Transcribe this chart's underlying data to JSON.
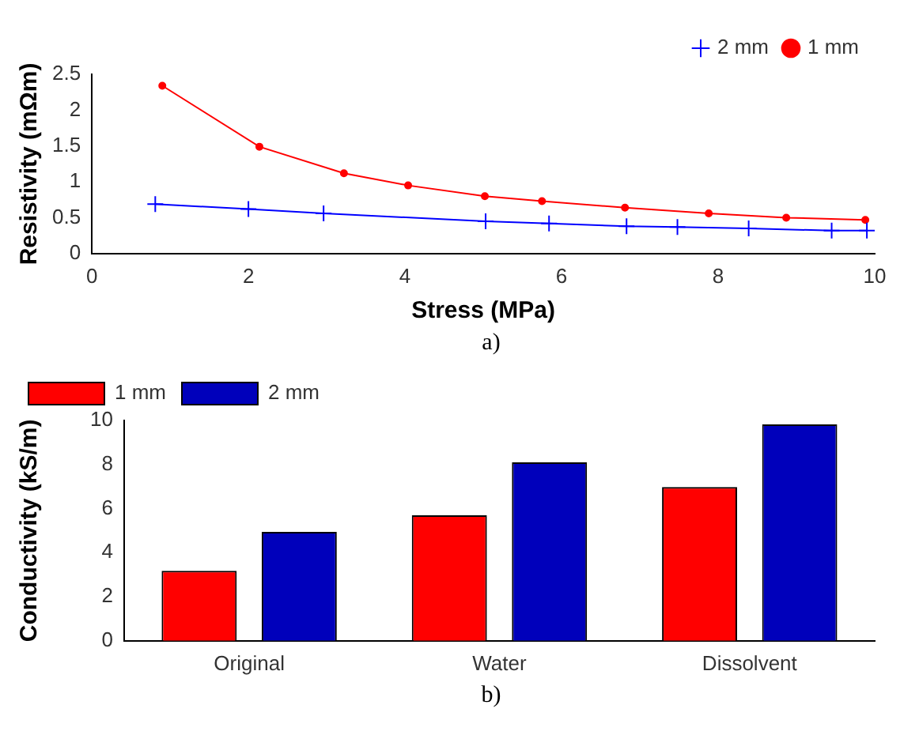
{
  "chart_data": [
    {
      "type": "line",
      "xlabel": "Stress (MPa)",
      "ylabel": "Resistivity (mΩm)",
      "xlim": [
        0,
        10
      ],
      "xticks": [
        0,
        2,
        4,
        6,
        8,
        10
      ],
      "ylim": [
        0,
        2.5
      ],
      "yticks": [
        0,
        0.5,
        1,
        1.5,
        2,
        2.5
      ],
      "grid": false,
      "legend": "top right",
      "annotations": [
        "a)"
      ],
      "series": [
        {
          "name": "2 mm",
          "color": "#0000ff",
          "marker": "cross",
          "x": [
            0.81,
            2.0,
            2.96,
            5.03,
            5.84,
            6.83,
            7.48,
            8.39,
            9.45,
            9.9
          ],
          "values": [
            0.69,
            0.62,
            0.56,
            0.45,
            0.42,
            0.38,
            0.37,
            0.35,
            0.32,
            0.32
          ]
        },
        {
          "name": "1 mm",
          "color": "#ff0000",
          "marker": "circle",
          "x": [
            0.9,
            2.14,
            3.22,
            4.04,
            5.02,
            5.75,
            6.81,
            7.88,
            8.87,
            9.88
          ],
          "values": [
            2.34,
            1.49,
            1.12,
            0.95,
            0.8,
            0.73,
            0.64,
            0.56,
            0.5,
            0.47
          ]
        }
      ]
    },
    {
      "type": "bar",
      "ylabel": "Conductivity (kS/m)",
      "categories": [
        "Original",
        "Water",
        "Dissolvent"
      ],
      "ylim": [
        0,
        10
      ],
      "yticks": [
        0,
        2,
        4,
        6,
        8,
        10
      ],
      "grid": false,
      "legend": "top left",
      "annotations": [
        "b)"
      ],
      "series": [
        {
          "name": "1 mm",
          "color": "#ff0000",
          "values": [
            3.18,
            5.7,
            6.98
          ]
        },
        {
          "name": "2 mm",
          "color": "#0000bb",
          "values": [
            4.94,
            8.1,
            9.82
          ]
        }
      ]
    }
  ]
}
